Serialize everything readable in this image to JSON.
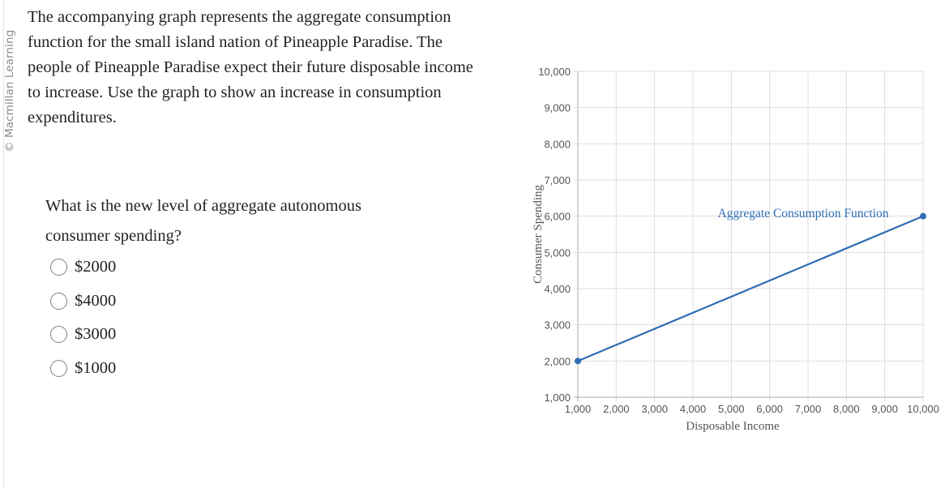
{
  "sidebar": {
    "copyright": "© Macmillan Learning"
  },
  "prompt": {
    "text": "The accompanying graph represents the aggregate consumption function for the small island nation of Pineapple Paradise. The people of Pineapple Paradise expect their future disposable income to increase. Use the graph to show an increase in consumption expenditures."
  },
  "question": {
    "text": "What is the new level of aggregate autonomous consumer spending?",
    "options": [
      {
        "label": "$2000",
        "selected": false
      },
      {
        "label": "$4000",
        "selected": false
      },
      {
        "label": "$3000",
        "selected": false
      },
      {
        "label": "$1000",
        "selected": false
      }
    ]
  },
  "colors": {
    "line": "#2f6db5",
    "grid": "#dddddd",
    "axis": "#aaaaaa",
    "tick_text": "#555555",
    "axis_label": "#555555"
  },
  "chart_data": {
    "type": "line",
    "title": "",
    "xlabel": "Disposable Income",
    "ylabel": "Consumer Spending",
    "xlim": [
      1000,
      10000
    ],
    "ylim": [
      1000,
      10000
    ],
    "grid": true,
    "x_ticks": [
      "1,000",
      "2,000",
      "3,000",
      "4,000",
      "5,000",
      "6,000",
      "7,000",
      "8,000",
      "9,000",
      "10,000"
    ],
    "y_ticks": [
      "1,000",
      "2,000",
      "3,000",
      "4,000",
      "5,000",
      "6,000",
      "7,000",
      "8,000",
      "9,000",
      "10,000"
    ],
    "series": [
      {
        "name": "Aggregate Consumption Function",
        "x": [
          1000,
          10000
        ],
        "y": [
          2000,
          6000
        ],
        "color": "#2f6db5"
      }
    ],
    "annotations": [
      {
        "text": "Aggregate Consumption Function",
        "x": 8000,
        "y": 6000
      }
    ]
  }
}
